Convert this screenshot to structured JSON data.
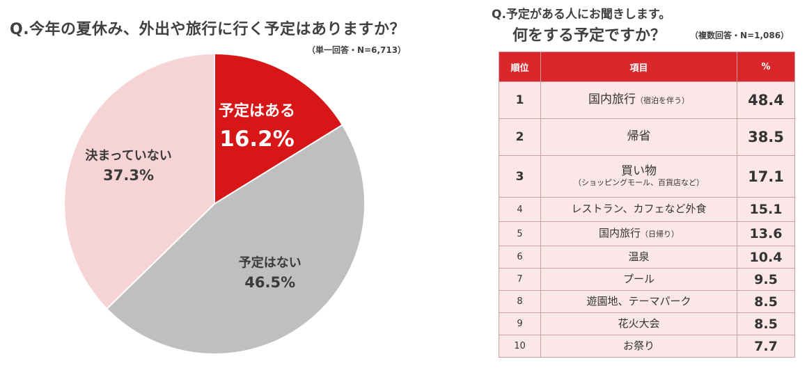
{
  "left": {
    "title": "Q.今年の夏休み、外出や旅行に行く予定はありますか？",
    "note": "（単一回答・N=6,713）"
  },
  "right": {
    "title_line1": "Q.予定がある人にお聞きします。",
    "title_line2": "何をする予定ですか？",
    "note": "（複数回答・N=1,086）",
    "headers": {
      "rank": "順位",
      "item": "項目",
      "pct": "%"
    },
    "rows": [
      {
        "rank": "1",
        "item": "国内旅行",
        "sub": "（宿泊を伴う）",
        "pct": "48.4"
      },
      {
        "rank": "2",
        "item": "帰省",
        "sub": "",
        "pct": "38.5"
      },
      {
        "rank": "3",
        "item": "買い物",
        "sub": "（ショッピングモール、百貨店など）",
        "pct": "17.1"
      },
      {
        "rank": "4",
        "item": "レストラン、カフェなど外食",
        "sub": "",
        "pct": "15.1"
      },
      {
        "rank": "5",
        "item": "国内旅行",
        "sub": "（日帰り）",
        "pct": "13.6"
      },
      {
        "rank": "6",
        "item": "温泉",
        "sub": "",
        "pct": "10.4"
      },
      {
        "rank": "7",
        "item": "プール",
        "sub": "",
        "pct": "9.5"
      },
      {
        "rank": "8",
        "item": "遊園地、テーマパーク",
        "sub": "",
        "pct": "8.5"
      },
      {
        "rank": "9",
        "item": "花火大会",
        "sub": "",
        "pct": "8.5"
      },
      {
        "rank": "10",
        "item": "お祭り",
        "sub": "",
        "pct": "7.7"
      }
    ]
  },
  "chart_data": [
    {
      "type": "pie",
      "title": "Q.今年の夏休み、外出や旅行に行く予定はありますか？",
      "slices": [
        {
          "label": "予定はある",
          "value": 16.2,
          "value_label": "16.2%",
          "color": "#d71618"
        },
        {
          "label": "予定はない",
          "value": 46.5,
          "value_label": "46.5%",
          "color": "#bfbfbf"
        },
        {
          "label": "決まっていない",
          "value": 37.3,
          "value_label": "37.3%",
          "color": "#f6d4d5"
        }
      ]
    },
    {
      "type": "table",
      "title": "何をする予定ですか？",
      "columns": [
        "順位",
        "項目",
        "%"
      ],
      "values": [
        48.4,
        38.5,
        17.1,
        15.1,
        13.6,
        10.4,
        9.5,
        8.5,
        8.5,
        7.7
      ]
    }
  ]
}
